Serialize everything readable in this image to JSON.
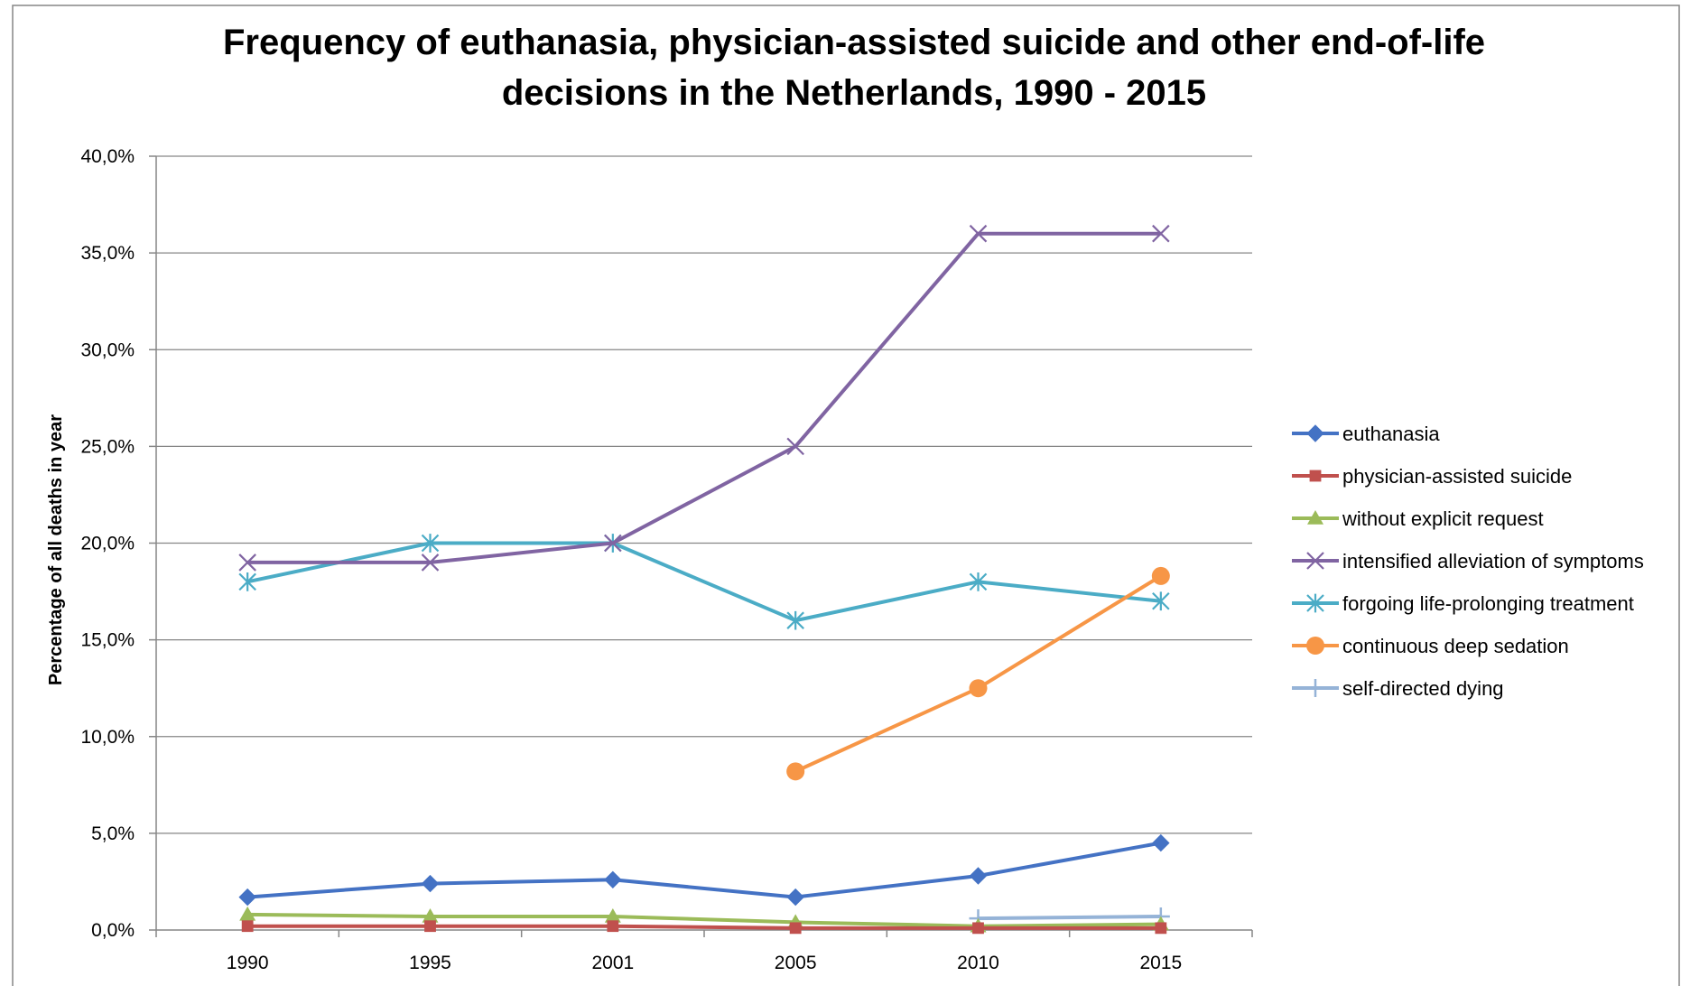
{
  "chart_data": {
    "type": "line",
    "title_lines": [
      "Frequency of euthanasia, physician-assisted suicide and other end-of-life",
      "decisions in the Netherlands, 1990 - 2015"
    ],
    "xlabel": "",
    "ylabel": "Percentage of all deaths in year",
    "categories": [
      "1990",
      "1995",
      "2001",
      "2005",
      "2010",
      "2015"
    ],
    "ylim": [
      0,
      40
    ],
    "yticks": [
      0,
      5,
      10,
      15,
      20,
      25,
      30,
      35,
      40
    ],
    "ytick_labels": [
      "0,0%",
      "5,0%",
      "10,0%",
      "15,0%",
      "20,0%",
      "25,0%",
      "30,0%",
      "35,0%",
      "40,0%"
    ],
    "grid": true,
    "legend_position": "right",
    "series": [
      {
        "name": "euthanasia",
        "color": "#4472C4",
        "marker": "diamond",
        "values": [
          1.7,
          2.4,
          2.6,
          1.7,
          2.8,
          4.5
        ]
      },
      {
        "name": "physician-assisted suicide",
        "color": "#C0504D",
        "marker": "square",
        "values": [
          0.2,
          0.2,
          0.2,
          0.1,
          0.1,
          0.1
        ]
      },
      {
        "name": "without explicit request",
        "color": "#9BBB59",
        "marker": "triangle",
        "values": [
          0.8,
          0.7,
          0.7,
          0.4,
          0.2,
          0.3
        ]
      },
      {
        "name": "intensified alleviation of symptoms",
        "color": "#8064A2",
        "marker": "x",
        "values": [
          19,
          19,
          20,
          25,
          36,
          36
        ]
      },
      {
        "name": "forgoing life-prolonging treatment",
        "color": "#4BACC6",
        "marker": "star",
        "values": [
          18,
          20,
          20,
          16,
          18,
          17
        ]
      },
      {
        "name": "continuous deep sedation",
        "color": "#F79646",
        "marker": "circle",
        "values": [
          null,
          null,
          null,
          8.2,
          12.5,
          18.3
        ]
      },
      {
        "name": "self-directed dying",
        "color": "#95B3D7",
        "marker": "plus",
        "values": [
          null,
          null,
          null,
          null,
          0.6,
          0.7
        ]
      }
    ]
  }
}
